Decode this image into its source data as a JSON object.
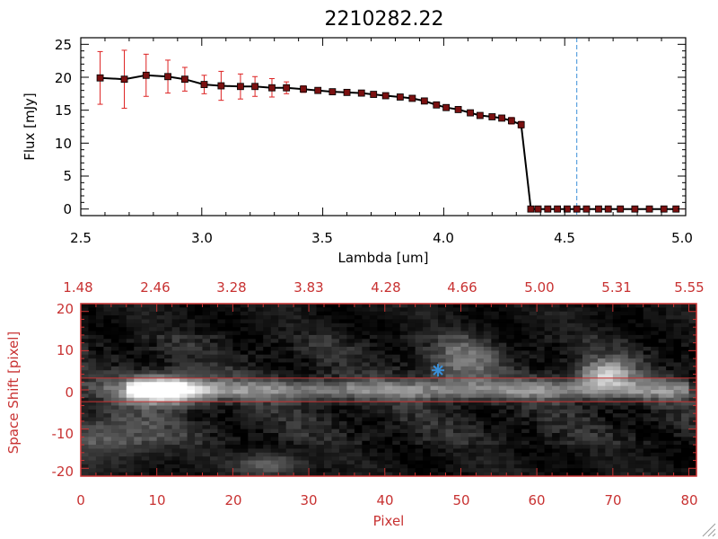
{
  "colors": {
    "line": "#000000",
    "marker": "#7a1010",
    "errorbar": "#dd2222",
    "cutoff": "#3a8fd8",
    "frame_red": "#c83232",
    "star": "#3a8fd8"
  },
  "chart_data": [
    {
      "type": "line",
      "title": "2210282.22",
      "xlabel": "Lambda [um]",
      "ylabel": "Flux [mJy]",
      "xlim": [
        2.5,
        5.0
      ],
      "ylim": [
        -1,
        26
      ],
      "x_ticks": [
        "2.5",
        "3.0",
        "3.5",
        "4.0",
        "4.5",
        "5.0"
      ],
      "y_ticks": [
        "0",
        "5",
        "10",
        "15",
        "20",
        "25"
      ],
      "vertical_line_x": 4.55,
      "series": [
        {
          "x": [
            2.58,
            2.68,
            2.77,
            2.86,
            2.93,
            3.01,
            3.08,
            3.16,
            3.22,
            3.29,
            3.35,
            3.42,
            3.48,
            3.54,
            3.6,
            3.66,
            3.71,
            3.76,
            3.82,
            3.87,
            3.92,
            3.97,
            4.01,
            4.06,
            4.11,
            4.15,
            4.2,
            4.24,
            4.28,
            4.32,
            4.36,
            4.39,
            4.43,
            4.47,
            4.51,
            4.55,
            4.59,
            4.64,
            4.68,
            4.73,
            4.79,
            4.85,
            4.91,
            4.96
          ],
          "y": [
            19.9,
            19.7,
            20.3,
            20.1,
            19.7,
            18.9,
            18.7,
            18.6,
            18.6,
            18.4,
            18.4,
            18.2,
            18.0,
            17.8,
            17.7,
            17.6,
            17.4,
            17.2,
            17.0,
            16.8,
            16.4,
            15.8,
            15.4,
            15.1,
            14.6,
            14.2,
            14.0,
            13.8,
            13.4,
            12.8,
            0.0,
            0.0,
            0.0,
            0.0,
            0.0,
            0.0,
            0.0,
            0.0,
            0.0,
            0.0,
            0.0,
            0.0,
            0.0,
            0.0
          ],
          "err": [
            4.0,
            4.4,
            3.2,
            2.5,
            1.8,
            1.4,
            2.2,
            1.9,
            1.5,
            1.4,
            0.9,
            0.5,
            0.4,
            0.3,
            0.3,
            0.3,
            0.3,
            0.3,
            0.3,
            0.3,
            0.4,
            0.4,
            0.4,
            0.4,
            0.4,
            0.4,
            0.4,
            0.4,
            0.5,
            0.5,
            0.2,
            0.2,
            0.2,
            0.2,
            0.2,
            0.2,
            0.2,
            0.2,
            0.2,
            0.2,
            0.2,
            0.2,
            0.2,
            0.2
          ]
        }
      ]
    },
    {
      "type": "heatmap",
      "xlabel": "Pixel",
      "ylabel": "Space Shift [pixel]",
      "xlim": [
        0,
        81
      ],
      "ylim": [
        -22,
        22
      ],
      "x_ticks": [
        "0",
        "10",
        "20",
        "30",
        "40",
        "50",
        "60",
        "70",
        "80"
      ],
      "y_ticks": [
        "-20",
        "-10",
        "0",
        "10",
        "20"
      ],
      "top_ticks": [
        "1.48",
        "2.46",
        "3.28",
        "3.83",
        "4.28",
        "4.66",
        "5.00",
        "5.31",
        "5.55"
      ],
      "aperture_lines_y": [
        3,
        -3
      ],
      "star_marker": {
        "x": 47,
        "y": 5
      },
      "sources": [
        {
          "x": 11,
          "y": 0,
          "amp": 0.95,
          "sx": 3.5,
          "sy": 2.5
        },
        {
          "x": 50,
          "y": 7,
          "amp": 0.35,
          "sx": 3.0,
          "sy": 4.0
        },
        {
          "x": 69,
          "y": 4,
          "amp": 0.65,
          "sx": 2.5,
          "sy": 2.5
        },
        {
          "x": 4,
          "y": -12,
          "amp": 0.3,
          "sx": 5.0,
          "sy": 4.0
        },
        {
          "x": 25,
          "y": -19,
          "amp": 0.35,
          "sx": 3.0,
          "sy": 2.0
        }
      ]
    }
  ]
}
